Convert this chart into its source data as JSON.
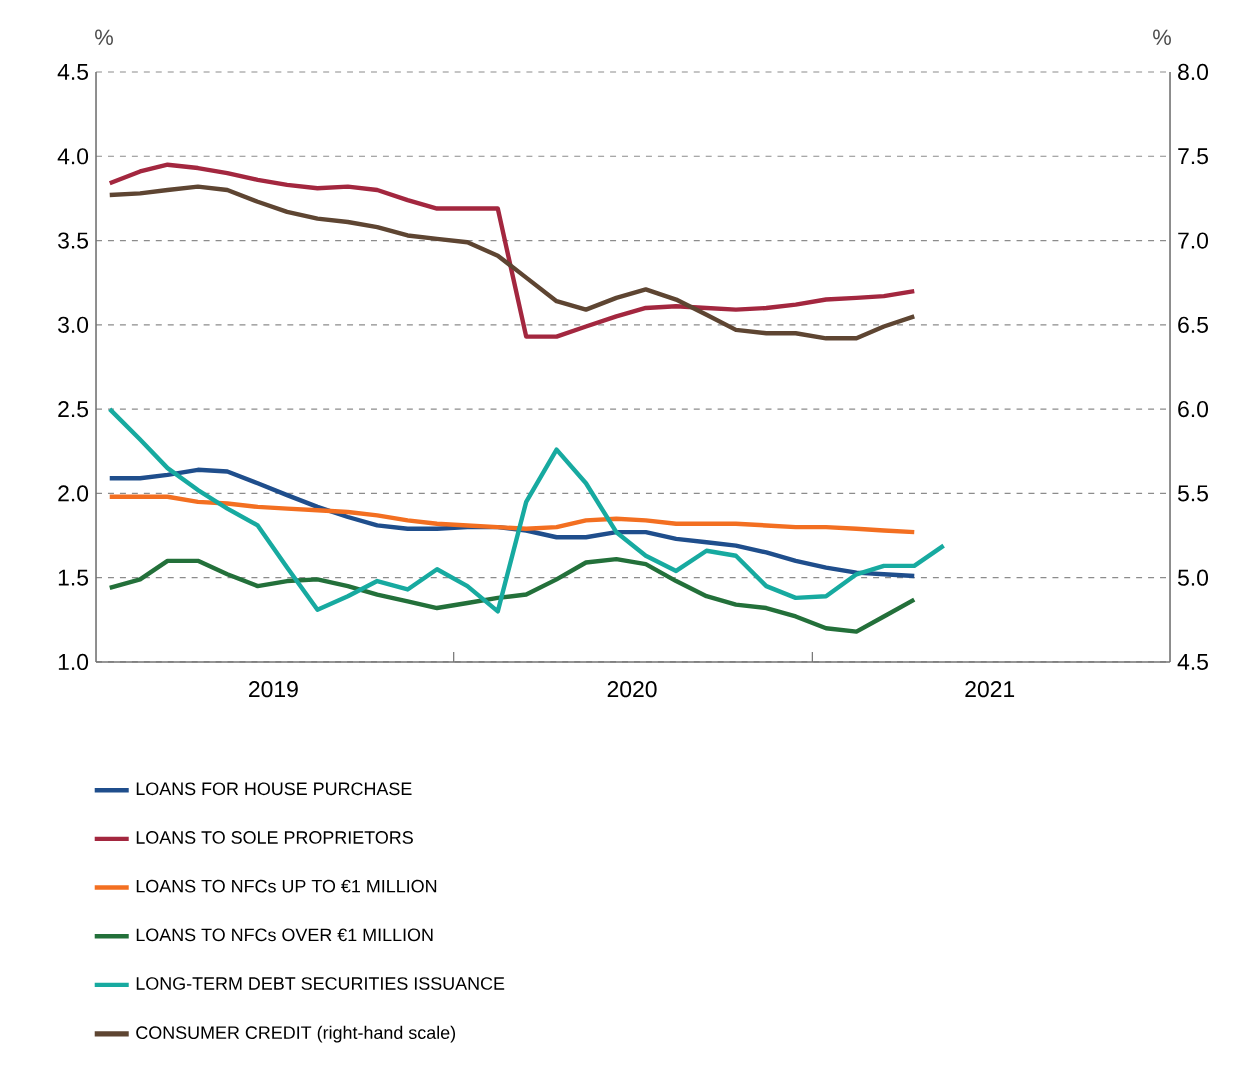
{
  "chart_data": {
    "type": "line",
    "ylabel": "%",
    "y2label": "%",
    "x": [
      "2019-01-15",
      "2019-02-15",
      "2019-03-15",
      "2019-04-15",
      "2019-05-15",
      "2019-06-15",
      "2019-07-15",
      "2019-08-15",
      "2019-09-15",
      "2019-10-15",
      "2019-11-15",
      "2019-12-15",
      "2020-01-15",
      "2020-02-15",
      "2020-03-15",
      "2020-04-15",
      "2020-05-15",
      "2020-06-15",
      "2020-07-15",
      "2020-08-15",
      "2020-09-15",
      "2020-10-15",
      "2020-11-15",
      "2020-12-15",
      "2021-01-15",
      "2021-02-15",
      "2021-03-15",
      "2021-04-15"
    ],
    "xlim": [
      "2019-01-01",
      "2022-01-01"
    ],
    "xticks": [
      {
        "value": "2019-07-01",
        "label": "2019"
      },
      {
        "value": "2020-01-01",
        "label": null
      },
      {
        "value": "2020-07-01",
        "label": "2020"
      },
      {
        "value": "2021-01-01",
        "label": null
      },
      {
        "value": "2021-07-01",
        "label": "2021"
      }
    ],
    "ylim": [
      1.0,
      4.5
    ],
    "yticks": [
      {
        "value": 1.0,
        "label": "1.0"
      },
      {
        "value": 1.5,
        "label": "1.5"
      },
      {
        "value": 2.0,
        "label": "2.0"
      },
      {
        "value": 2.5,
        "label": "2.5"
      },
      {
        "value": 3.0,
        "label": "3.0"
      },
      {
        "value": 3.5,
        "label": "3.5"
      },
      {
        "value": 4.0,
        "label": "4.0"
      },
      {
        "value": 4.5,
        "label": "4.5"
      }
    ],
    "y2lim": [
      4.5,
      8.0
    ],
    "y2ticks": [
      {
        "value": 4.5,
        "label": "4.5"
      },
      {
        "value": 5.0,
        "label": "5.0"
      },
      {
        "value": 5.5,
        "label": "5.5"
      },
      {
        "value": 6.0,
        "label": "6.0"
      },
      {
        "value": 6.5,
        "label": "6.5"
      },
      {
        "value": 7.0,
        "label": "7.0"
      },
      {
        "value": 7.5,
        "label": "7.5"
      },
      {
        "value": 8.0,
        "label": "8.0"
      }
    ],
    "grid": "y",
    "legend": "bottom",
    "marker": "none",
    "line_style": "solid",
    "series": [
      {
        "name": "LOANS FOR HOUSE PURCHASE",
        "color": "#1f4e8c",
        "values": [
          2.09,
          2.09,
          2.11,
          2.14,
          2.13,
          2.06,
          1.99,
          1.92,
          1.86,
          1.81,
          1.79,
          1.79,
          1.8,
          1.8,
          1.78,
          1.74,
          1.74,
          1.77,
          1.77,
          1.73,
          1.71,
          1.69,
          1.65,
          1.6,
          1.56,
          1.53,
          1.52,
          1.51
        ]
      },
      {
        "name": "LOANS TO SOLE PROPRIETORS",
        "color": "#a3273f",
        "values": [
          3.84,
          3.91,
          3.95,
          3.93,
          3.9,
          3.86,
          3.83,
          3.81,
          3.82,
          3.8,
          3.74,
          3.69,
          3.69,
          3.69,
          2.93,
          2.93,
          2.99,
          3.05,
          3.1,
          3.11,
          3.1,
          3.09,
          3.1,
          3.12,
          3.15,
          3.16,
          3.17,
          3.2
        ]
      },
      {
        "name": "LOANS TO NFCs UP TO €1 MILLION",
        "color": "#f36f21",
        "values": [
          1.98,
          1.98,
          1.98,
          1.95,
          1.94,
          1.92,
          1.91,
          1.9,
          1.89,
          1.87,
          1.84,
          1.82,
          1.81,
          1.8,
          1.79,
          1.8,
          1.84,
          1.85,
          1.84,
          1.82,
          1.82,
          1.82,
          1.81,
          1.8,
          1.8,
          1.79,
          1.78,
          1.77
        ]
      },
      {
        "name": "LOANS TO NFCs OVER €1 MILLION",
        "color": "#23703a",
        "values": [
          1.44,
          1.49,
          1.6,
          1.6,
          1.52,
          1.45,
          1.48,
          1.49,
          1.45,
          1.4,
          1.36,
          1.32,
          1.35,
          1.38,
          1.4,
          1.49,
          1.59,
          1.61,
          1.58,
          1.48,
          1.39,
          1.34,
          1.32,
          1.27,
          1.2,
          1.18,
          1.27,
          1.37
        ]
      },
      {
        "name": "LONG-TERM DEBT SECURITIES ISSUANCE",
        "color": "#17aaa0",
        "x": [
          "2019-01-15",
          "2019-02-15",
          "2019-03-15",
          "2019-04-15",
          "2019-05-15",
          "2019-06-15",
          "2019-07-15",
          "2019-08-15",
          "2019-09-15",
          "2019-10-15",
          "2019-11-15",
          "2019-12-15",
          "2020-01-15",
          "2020-02-15",
          "2020-03-15",
          "2020-04-15",
          "2020-05-15",
          "2020-06-15",
          "2020-07-15",
          "2020-08-15",
          "2020-09-15",
          "2020-10-15",
          "2020-11-15",
          "2020-12-15",
          "2021-01-15",
          "2021-02-15",
          "2021-03-15",
          "2021-04-15",
          "2021-05-15"
        ],
        "values": [
          2.5,
          2.32,
          2.15,
          2.02,
          1.91,
          1.81,
          1.56,
          1.31,
          1.39,
          1.48,
          1.43,
          1.55,
          1.45,
          1.3,
          1.95,
          2.26,
          2.06,
          1.77,
          1.63,
          1.54,
          1.66,
          1.63,
          1.45,
          1.38,
          1.39,
          1.52,
          1.57,
          1.57,
          1.69
        ]
      },
      {
        "name": "CONSUMER CREDIT (right-hand scale)",
        "color": "#5e4532",
        "axis": "y2",
        "values": [
          7.27,
          7.28,
          7.3,
          7.32,
          7.3,
          7.23,
          7.17,
          7.13,
          7.11,
          7.08,
          7.03,
          7.01,
          6.99,
          6.91,
          6.78,
          6.64,
          6.59,
          6.66,
          6.71,
          6.65,
          6.56,
          6.47,
          6.45,
          6.45,
          6.42,
          6.42,
          6.49,
          6.55
        ]
      }
    ]
  }
}
